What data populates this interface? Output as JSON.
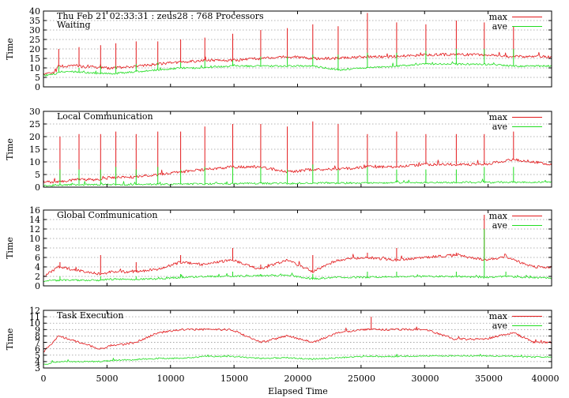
{
  "figure": {
    "xlabel": "Elapsed Time",
    "x_ticks": [
      "0",
      "5000",
      "10000",
      "15000",
      "20000",
      "25000",
      "30000",
      "35000",
      "40000"
    ],
    "legend": [
      {
        "label": "max",
        "color": "#e31a1c"
      },
      {
        "label": "ave",
        "color": "#22dd22"
      }
    ]
  },
  "chart_data": [
    {
      "type": "line",
      "title": "Thu Feb 21 02:33:31 : zeus28 : 768 Processors",
      "subtitle": "Waiting",
      "ylabel": "Time",
      "xlim": [
        0,
        40000
      ],
      "ylim": [
        0,
        40
      ],
      "y_ticks": [
        "0",
        "5",
        "10",
        "15",
        "20",
        "25",
        "30",
        "35",
        "40"
      ],
      "grid": true,
      "legend_position": "top-right",
      "x": [
        0,
        1000,
        1100,
        2500,
        4400,
        5500,
        7300,
        9000,
        10800,
        12700,
        14800,
        17100,
        19200,
        21200,
        23200,
        25400,
        27800,
        30100,
        32400,
        34700,
        37000,
        38600,
        40000
      ],
      "series": [
        {
          "name": "max",
          "color": "#e31a1c",
          "values": [
            7,
            8,
            11,
            11,
            10,
            10,
            11,
            12,
            13,
            14,
            14,
            15,
            16,
            15,
            15,
            16,
            16,
            17,
            17,
            17,
            16,
            16,
            16
          ]
        },
        {
          "name": "ave",
          "color": "#22dd22",
          "values": [
            6,
            7,
            8,
            8,
            7,
            7,
            8,
            9,
            10,
            10,
            11,
            11,
            11,
            11,
            9,
            10,
            11,
            12,
            12,
            12,
            11,
            11,
            11
          ]
        }
      ],
      "spikes": {
        "x": [
          1200,
          2800,
          4500,
          5700,
          7300,
          9000,
          10800,
          12700,
          14900,
          17100,
          19200,
          21200,
          23200,
          25500,
          27800,
          30100,
          32500,
          34700,
          37000
        ],
        "max": [
          20,
          21,
          22,
          23,
          24,
          24,
          25,
          26,
          28,
          30,
          31,
          33,
          32,
          39,
          34,
          33,
          35,
          34,
          32
        ],
        "ave": [
          11,
          10,
          11,
          11,
          12,
          13,
          13,
          14,
          14,
          16,
          16,
          17,
          17,
          18,
          18,
          19,
          20,
          20,
          20
        ]
      }
    },
    {
      "type": "line",
      "title": "Local Communication",
      "ylabel": "Time",
      "xlim": [
        0,
        40000
      ],
      "ylim": [
        0,
        30
      ],
      "y_ticks": [
        "0",
        "5",
        "10",
        "15",
        "20",
        "25",
        "30"
      ],
      "grid": true,
      "legend_position": "top-right",
      "x": [
        0,
        1000,
        2500,
        4400,
        5500,
        7300,
        9000,
        10800,
        12700,
        14800,
        17100,
        19200,
        21200,
        23200,
        25400,
        27800,
        30100,
        32400,
        34700,
        37000,
        38600,
        40000
      ],
      "series": [
        {
          "name": "max",
          "color": "#e31a1c",
          "values": [
            2,
            2,
            3,
            3,
            4,
            4,
            5,
            6,
            7,
            8,
            8,
            6,
            7,
            7,
            8,
            8,
            9,
            9,
            9,
            11,
            10,
            9
          ]
        },
        {
          "name": "ave",
          "color": "#22dd22",
          "values": [
            0.5,
            0.8,
            1,
            1,
            1,
            1.1,
            1.1,
            1.2,
            1.3,
            1.4,
            1.5,
            1.5,
            1.6,
            1.6,
            1.7,
            1.8,
            1.8,
            1.9,
            1.9,
            2,
            2,
            2
          ]
        }
      ],
      "spikes": {
        "x": [
          1300,
          2800,
          4500,
          5700,
          7300,
          9000,
          10800,
          12700,
          14900,
          17100,
          19200,
          21200,
          23200,
          25500,
          27800,
          30100,
          32500,
          34700,
          37000
        ],
        "max": [
          20,
          21,
          21,
          22,
          21,
          22,
          22,
          24,
          25,
          25,
          24,
          26,
          25,
          21,
          22,
          21,
          21,
          21,
          22
        ],
        "ave": [
          7,
          7,
          7,
          8,
          7,
          8,
          7,
          8,
          8,
          8,
          7,
          9,
          7,
          8,
          7,
          7,
          7,
          8,
          8
        ]
      }
    },
    {
      "type": "line",
      "title": "Global Communication",
      "ylabel": "Time",
      "xlim": [
        0,
        40000
      ],
      "ylim": [
        0,
        16
      ],
      "y_ticks": [
        "0",
        "2",
        "4",
        "6",
        "8",
        "10",
        "12",
        "14",
        "16"
      ],
      "grid": true,
      "legend_position": "top-right",
      "x": [
        0,
        1200,
        4400,
        5500,
        7300,
        9000,
        10800,
        12700,
        14800,
        17100,
        19200,
        21200,
        23200,
        25400,
        27800,
        30100,
        32400,
        34700,
        36400,
        38600,
        40000
      ],
      "series": [
        {
          "name": "max",
          "color": "#e31a1c",
          "values": [
            2,
            4,
            2.5,
            3,
            3,
            3.5,
            5,
            4.5,
            5.5,
            3.5,
            5.5,
            3,
            5.5,
            6,
            5.5,
            6,
            6.5,
            5.5,
            6,
            4,
            4
          ]
        },
        {
          "name": "ave",
          "color": "#22dd22",
          "values": [
            1,
            1.2,
            1.2,
            1.4,
            1.4,
            1.5,
            1.8,
            2,
            2,
            2.2,
            2.2,
            1.5,
            1.8,
            1.8,
            2,
            2,
            2,
            1.8,
            2,
            1.7,
            1.7
          ]
        }
      ],
      "spikes": {
        "x": [
          1300,
          4500,
          7300,
          10800,
          14900,
          17100,
          21200,
          25500,
          27800,
          32500,
          34700,
          36400
        ],
        "max": [
          5,
          6.5,
          5,
          6.5,
          8,
          4.5,
          6.5,
          7,
          8,
          7,
          15,
          6
        ],
        "ave": [
          2,
          2,
          2,
          2.5,
          3,
          2.5,
          2.5,
          3,
          3,
          3,
          12,
          3
        ]
      }
    },
    {
      "type": "line",
      "title": "Task Execution",
      "ylabel": "Time",
      "xlim": [
        0,
        40000
      ],
      "ylim": [
        3,
        12
      ],
      "y_ticks": [
        "3",
        "4",
        "5",
        "6",
        "7",
        "8",
        "9",
        "10",
        "11",
        "12"
      ],
      "grid": true,
      "legend_position": "top-right",
      "x": [
        0,
        1200,
        4400,
        5500,
        7300,
        9000,
        10800,
        12700,
        14800,
        17100,
        19200,
        21200,
        23200,
        25400,
        27800,
        30100,
        32400,
        34700,
        37000,
        38600,
        40000
      ],
      "series": [
        {
          "name": "max",
          "color": "#e31a1c",
          "values": [
            5.5,
            8,
            6,
            6.5,
            7,
            8.5,
            9,
            9,
            9,
            7,
            8,
            7,
            8.5,
            9,
            9,
            9,
            7.5,
            7.5,
            8.5,
            7,
            7
          ]
        },
        {
          "name": "ave",
          "color": "#22dd22",
          "values": [
            3.5,
            4,
            4,
            4.2,
            4.3,
            4.5,
            4.5,
            4.8,
            4.8,
            4.5,
            4.6,
            4.4,
            4.6,
            4.8,
            4.8,
            4.9,
            4.9,
            4.9,
            4.8,
            4.7,
            4.7
          ]
        }
      ],
      "spikes": {
        "x": [
          25800
        ],
        "max": [
          11
        ],
        "ave": [
          5
        ]
      }
    }
  ]
}
